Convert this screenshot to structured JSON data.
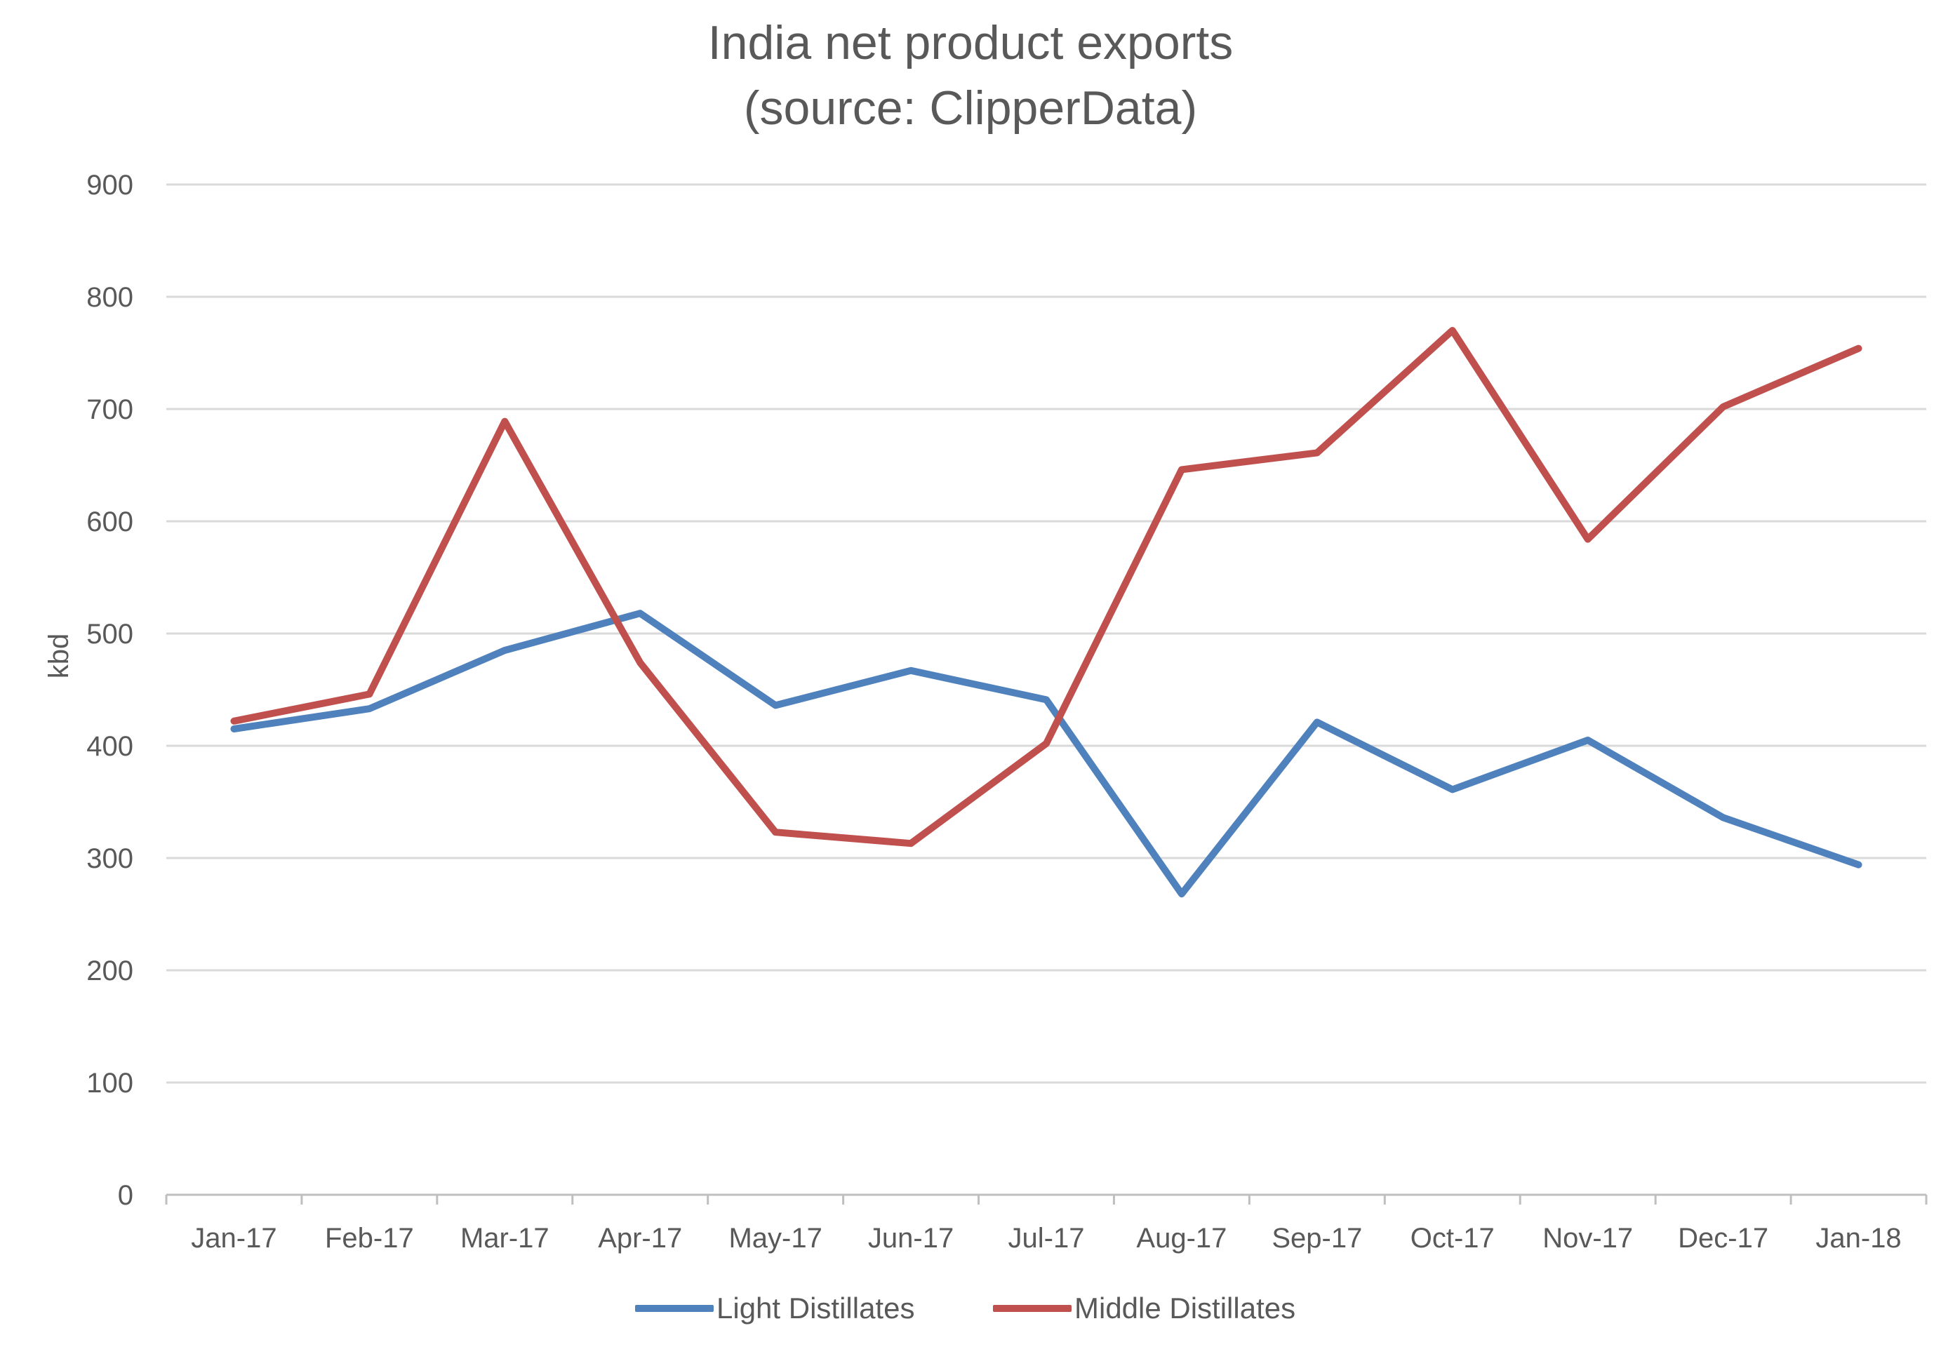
{
  "chart_data": {
    "type": "line",
    "title": "India net product exports",
    "subtitle": "(source: ClipperData)",
    "xlabel": "",
    "ylabel": "kbd",
    "ylim": [
      0,
      900
    ],
    "yticks": [
      "0",
      "100",
      "200",
      "300",
      "400",
      "500",
      "600",
      "700",
      "800",
      "900"
    ],
    "categories": [
      "Jan-17",
      "Feb-17",
      "Mar-17",
      "Apr-17",
      "May-17",
      "Jun-17",
      "Jul-17",
      "Aug-17",
      "Sep-17",
      "Oct-17",
      "Nov-17",
      "Dec-17",
      "Jan-18"
    ],
    "series": [
      {
        "name": "Light Distillates",
        "color": "#4f81bd",
        "values": [
          415,
          433,
          485,
          518,
          436,
          467,
          441,
          268,
          421,
          361,
          405,
          336,
          294
        ]
      },
      {
        "name": "Middle Distillates",
        "color": "#c0504d",
        "values": [
          422,
          446,
          689,
          474,
          323,
          313,
          402,
          646,
          661,
          770,
          584,
          702,
          754
        ]
      }
    ],
    "grid": true,
    "legend_position": "bottom"
  }
}
